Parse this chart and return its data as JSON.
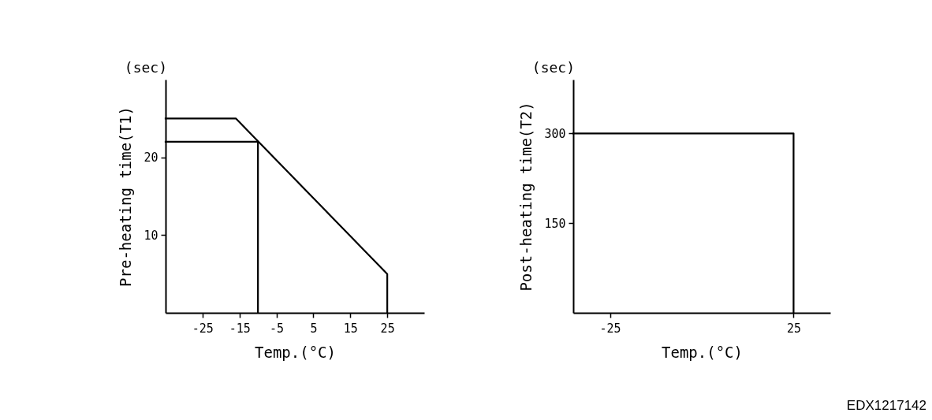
{
  "chart_data": [
    {
      "type": "line",
      "xlabel": "Temp.(°C)",
      "ylabel": "Pre-heating time(T1)",
      "annotations": [
        "(sec)"
      ],
      "xlim": [
        -35,
        35
      ],
      "ylim": [
        0,
        30
      ],
      "xticks": [
        -25,
        -15,
        -5,
        5,
        15,
        25
      ],
      "yticks": [
        10,
        20
      ],
      "grid": false,
      "line_style": "solid",
      "series": [
        {
          "color": "#000000",
          "x": [
            -35,
            -16,
            25,
            25
          ],
          "values": [
            25,
            25,
            5,
            0
          ]
        },
        {
          "color": "#000000",
          "x": [
            -35,
            -10,
            -10
          ],
          "values": [
            22,
            22,
            0
          ]
        }
      ]
    },
    {
      "type": "line",
      "xlabel": "Temp.(°C)",
      "ylabel": "Post-heating time(T2)",
      "annotations": [
        "(sec)",
        "EDX1217142"
      ],
      "xlim": [
        -35,
        35
      ],
      "ylim": [
        0,
        390
      ],
      "xticks": [
        -25,
        25
      ],
      "yticks": [
        150,
        300
      ],
      "grid": false,
      "line_style": "solid",
      "series": [
        {
          "color": "#000000",
          "x": [
            -35,
            25,
            25
          ],
          "values": [
            300,
            300,
            0
          ]
        }
      ]
    }
  ]
}
